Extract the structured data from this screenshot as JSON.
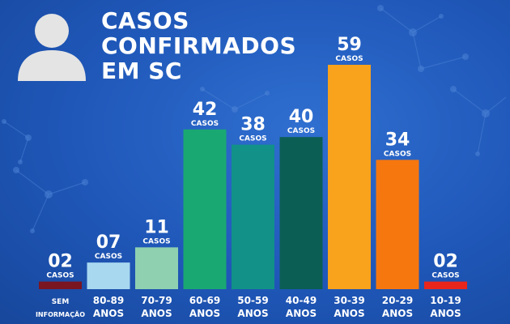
{
  "header": {
    "title_lines": [
      "CASOS",
      "CONFIRMADOS",
      "EM SC"
    ]
  },
  "icons": {
    "avatar": "person-silhouette-icon"
  },
  "colors": {
    "background": "#1f57b8",
    "bars": [
      "#7a1522",
      "#a8d8f0",
      "#8fd0b0",
      "#1aa872",
      "#119187",
      "#0b5e54",
      "#f9a21b",
      "#f7770f",
      "#e8261c"
    ]
  },
  "chart_data": {
    "type": "bar",
    "title": "CASOS CONFIRMADOS EM SC",
    "categories": [
      [
        "SEM",
        "INFORMAÇÃO"
      ],
      [
        "80-89",
        "ANOS"
      ],
      [
        "70-79",
        "ANOS"
      ],
      [
        "60-69",
        "ANOS"
      ],
      [
        "50-59",
        "ANOS"
      ],
      [
        "40-49",
        "ANOS"
      ],
      [
        "30-39",
        "ANOS"
      ],
      [
        "20-29",
        "ANOS"
      ],
      [
        "10-19",
        "ANOS"
      ]
    ],
    "values": [
      2,
      7,
      11,
      42,
      38,
      40,
      59,
      34,
      2
    ],
    "value_labels": [
      "02",
      "07",
      "11",
      "42",
      "38",
      "40",
      "59",
      "34",
      "02"
    ],
    "unit_label": "CASOS",
    "ylim": [
      0,
      59
    ],
    "grid": false,
    "legend": "none"
  }
}
